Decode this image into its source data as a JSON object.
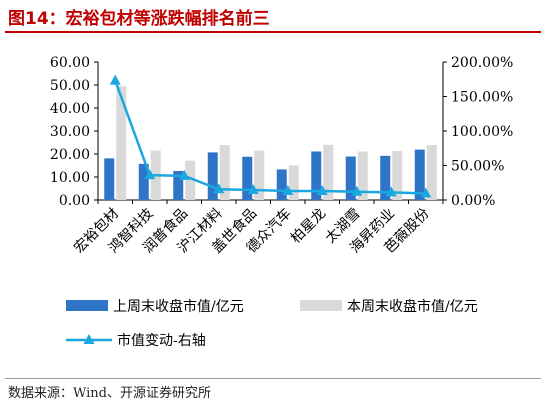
{
  "title": "图14：宏裕包材等涨跌幅排名前三",
  "source": "数据来源：Wind、开源证券研究所",
  "colors": {
    "title": "#c00000",
    "last_week": "#2e75c7",
    "this_week": "#d9d9d9",
    "change": "#1ba7e0"
  },
  "chart_data": {
    "type": "bar",
    "categories": [
      "宏裕包材",
      "鸿智科技",
      "润普食品",
      "沪江材料",
      "盖世食品",
      "德众汽车",
      "柏星龙",
      "太湖雪",
      "海昇药业",
      "芭薇股份"
    ],
    "series": [
      {
        "name": "上周末收盘市值/亿元",
        "type": "bar",
        "axis": "left",
        "values": [
          18.1,
          15.7,
          12.6,
          20.7,
          18.8,
          13.3,
          21.1,
          18.9,
          19.2,
          21.9
        ]
      },
      {
        "name": "本周末收盘市值/亿元",
        "type": "bar",
        "axis": "left",
        "values": [
          49.5,
          21.5,
          17.1,
          23.9,
          21.5,
          15.0,
          24.0,
          21.1,
          21.3,
          23.9
        ]
      },
      {
        "name": "市值变动-右轴",
        "type": "line",
        "axis": "right",
        "values": [
          173.0,
          36.0,
          35.0,
          15.5,
          14.5,
          13.0,
          13.0,
          12.0,
          11.0,
          9.5
        ]
      }
    ],
    "y_left": {
      "min": 0,
      "max": 60,
      "ticks": [
        "0.00",
        "10.00",
        "20.00",
        "30.00",
        "40.00",
        "50.00",
        "60.00"
      ]
    },
    "y_right": {
      "min": 0,
      "max": 200,
      "ticks": [
        "0.00%",
        "50.00%",
        "100.00%",
        "150.00%",
        "200.00%"
      ]
    },
    "legend_position": "bottom",
    "grid": false
  }
}
